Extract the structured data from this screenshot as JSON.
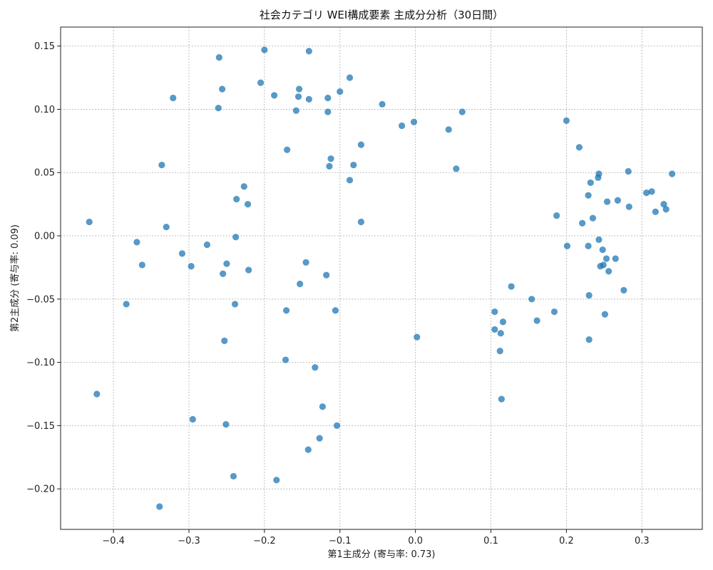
{
  "chart_data": {
    "type": "scatter",
    "title": "社会カテゴリ WEI構成要素 主成分分析（30日間）",
    "xlabel": "第1主成分 (寄与率: 0.73)",
    "ylabel": "第2主成分 (寄与率: 0.09)",
    "xlim": [
      -0.47,
      0.38
    ],
    "ylim": [
      -0.232,
      0.165
    ],
    "xticks": [
      -0.4,
      -0.3,
      -0.2,
      -0.1,
      0.0,
      0.1,
      0.2,
      0.3
    ],
    "xtick_labels": [
      "−0.4",
      "−0.3",
      "−0.2",
      "−0.1",
      "0.0",
      "0.1",
      "0.2",
      "0.3"
    ],
    "yticks": [
      -0.2,
      -0.15,
      -0.1,
      -0.05,
      0.0,
      0.05,
      0.1,
      0.15
    ],
    "ytick_labels": [
      "−0.20",
      "−0.15",
      "−0.10",
      "−0.05",
      "0.00",
      "0.05",
      "0.10",
      "0.15"
    ],
    "grid": true,
    "marker_color": "#1f77b4",
    "marker_opacity": 0.75,
    "points": [
      [
        -0.432,
        0.011
      ],
      [
        -0.422,
        -0.125
      ],
      [
        -0.383,
        -0.054
      ],
      [
        -0.369,
        -0.005
      ],
      [
        -0.362,
        -0.023
      ],
      [
        -0.339,
        -0.214
      ],
      [
        -0.336,
        0.056
      ],
      [
        -0.33,
        0.007
      ],
      [
        -0.321,
        0.109
      ],
      [
        -0.309,
        -0.014
      ],
      [
        -0.297,
        -0.024
      ],
      [
        -0.295,
        -0.145
      ],
      [
        -0.276,
        -0.007
      ],
      [
        -0.26,
        0.141
      ],
      [
        -0.261,
        0.101
      ],
      [
        -0.256,
        0.116
      ],
      [
        -0.255,
        -0.03
      ],
      [
        -0.253,
        -0.083
      ],
      [
        -0.251,
        -0.149
      ],
      [
        -0.25,
        -0.022
      ],
      [
        -0.241,
        -0.19
      ],
      [
        -0.239,
        -0.054
      ],
      [
        -0.238,
        -0.001
      ],
      [
        -0.237,
        0.029
      ],
      [
        -0.227,
        0.039
      ],
      [
        -0.222,
        0.025
      ],
      [
        -0.221,
        -0.027
      ],
      [
        -0.205,
        0.121
      ],
      [
        -0.2,
        0.147
      ],
      [
        -0.187,
        0.111
      ],
      [
        -0.184,
        -0.193
      ],
      [
        -0.172,
        -0.098
      ],
      [
        -0.171,
        -0.059
      ],
      [
        -0.17,
        0.068
      ],
      [
        -0.158,
        0.099
      ],
      [
        -0.155,
        0.11
      ],
      [
        -0.154,
        0.116
      ],
      [
        -0.153,
        -0.038
      ],
      [
        -0.145,
        -0.021
      ],
      [
        -0.142,
        -0.169
      ],
      [
        -0.141,
        0.108
      ],
      [
        -0.141,
        0.146
      ],
      [
        -0.133,
        -0.104
      ],
      [
        -0.127,
        -0.16
      ],
      [
        -0.123,
        -0.135
      ],
      [
        -0.118,
        -0.031
      ],
      [
        -0.116,
        0.098
      ],
      [
        -0.116,
        0.109
      ],
      [
        -0.114,
        0.055
      ],
      [
        -0.112,
        0.061
      ],
      [
        -0.106,
        -0.059
      ],
      [
        -0.104,
        -0.15
      ],
      [
        -0.1,
        0.114
      ],
      [
        -0.087,
        0.044
      ],
      [
        -0.087,
        0.125
      ],
      [
        -0.082,
        0.056
      ],
      [
        -0.072,
        0.072
      ],
      [
        -0.072,
        0.011
      ],
      [
        -0.044,
        0.104
      ],
      [
        -0.018,
        0.087
      ],
      [
        -0.002,
        0.09
      ],
      [
        0.002,
        -0.08
      ],
      [
        0.044,
        0.084
      ],
      [
        0.054,
        0.053
      ],
      [
        0.062,
        0.098
      ],
      [
        0.105,
        -0.06
      ],
      [
        0.105,
        -0.074
      ],
      [
        0.112,
        -0.091
      ],
      [
        0.113,
        -0.077
      ],
      [
        0.114,
        -0.129
      ],
      [
        0.116,
        -0.068
      ],
      [
        0.127,
        -0.04
      ],
      [
        0.154,
        -0.05
      ],
      [
        0.161,
        -0.067
      ],
      [
        0.184,
        -0.06
      ],
      [
        0.187,
        0.016
      ],
      [
        0.2,
        0.091
      ],
      [
        0.201,
        -0.008
      ],
      [
        0.217,
        0.07
      ],
      [
        0.221,
        0.01
      ],
      [
        0.229,
        -0.008
      ],
      [
        0.229,
        0.032
      ],
      [
        0.23,
        -0.047
      ],
      [
        0.23,
        -0.082
      ],
      [
        0.232,
        0.042
      ],
      [
        0.235,
        0.014
      ],
      [
        0.242,
        0.046
      ],
      [
        0.243,
        0.049
      ],
      [
        0.243,
        -0.003
      ],
      [
        0.245,
        -0.024
      ],
      [
        0.248,
        -0.011
      ],
      [
        0.249,
        -0.023
      ],
      [
        0.251,
        -0.062
      ],
      [
        0.253,
        -0.018
      ],
      [
        0.254,
        0.027
      ],
      [
        0.256,
        -0.028
      ],
      [
        0.265,
        -0.018
      ],
      [
        0.268,
        0.028
      ],
      [
        0.276,
        -0.043
      ],
      [
        0.282,
        0.051
      ],
      [
        0.283,
        0.023
      ],
      [
        0.306,
        0.034
      ],
      [
        0.313,
        0.035
      ],
      [
        0.318,
        0.019
      ],
      [
        0.329,
        0.025
      ],
      [
        0.332,
        0.021
      ],
      [
        0.34,
        0.049
      ]
    ]
  }
}
